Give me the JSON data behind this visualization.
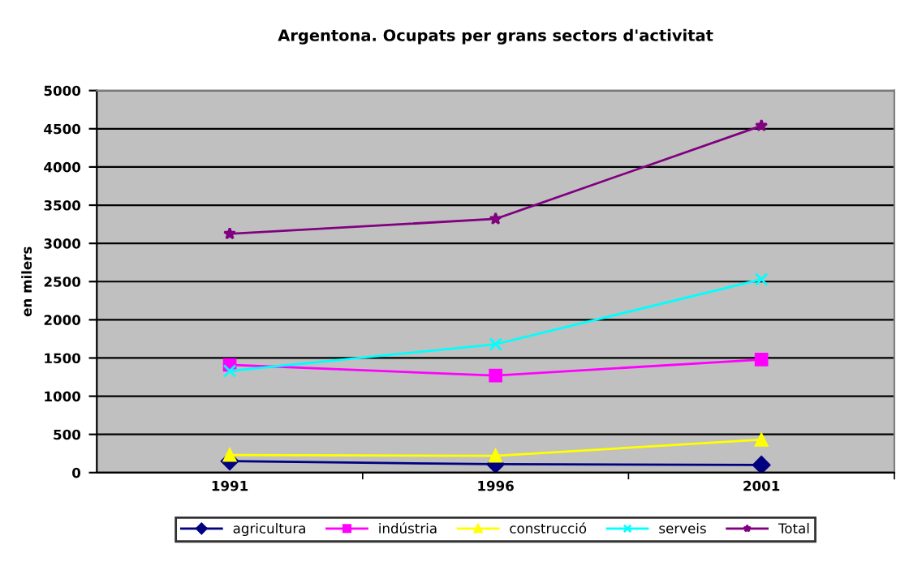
{
  "chart_data": {
    "type": "line",
    "title": "Argentona. Ocupats per grans sectors d'activitat",
    "ylabel": "en milers",
    "categories": [
      "1991",
      "1996",
      "2001"
    ],
    "series": [
      {
        "name": "agricultura",
        "color": "#000080",
        "marker": "diamond",
        "values": [
          150,
          110,
          100
        ]
      },
      {
        "name": "indústria",
        "color": "#ff00ff",
        "marker": "square",
        "values": [
          1410,
          1270,
          1480
        ]
      },
      {
        "name": "construcció",
        "color": "#ffff00",
        "marker": "triangle",
        "values": [
          230,
          220,
          430
        ]
      },
      {
        "name": "serveis",
        "color": "#00ffff",
        "marker": "cross",
        "values": [
          1330,
          1680,
          2530
        ]
      },
      {
        "name": "Total",
        "color": "#800080",
        "marker": "star",
        "values": [
          3125,
          3320,
          4540
        ]
      }
    ],
    "ylim": [
      0,
      5000
    ],
    "yticks": [
      0,
      500,
      1000,
      1500,
      2000,
      2500,
      3000,
      3500,
      4000,
      4500,
      5000
    ],
    "grid": "y",
    "legend": "bottom",
    "line_style": "solid"
  }
}
